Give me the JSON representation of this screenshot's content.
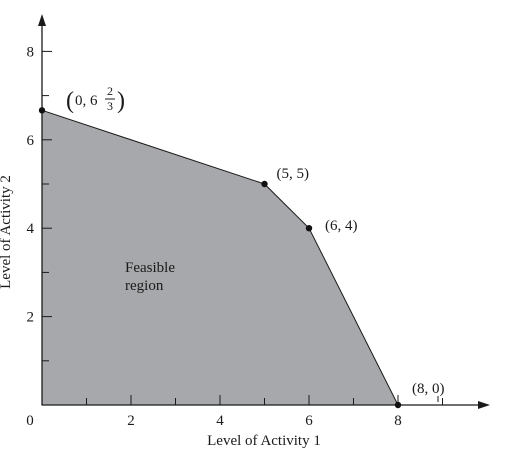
{
  "chart_data": {
    "type": "area",
    "xlabel": "Level of Activity 1",
    "ylabel": "Level of Activity 2",
    "xlim": [
      0,
      10.2
    ],
    "ylim": [
      0,
      8.8
    ],
    "x_ticks": [
      0,
      2,
      4,
      6,
      8
    ],
    "y_ticks": [
      2,
      4,
      6,
      8
    ],
    "x_minor_ticks": [
      1,
      3,
      5,
      7,
      9
    ],
    "y_minor_ticks": [
      1,
      3,
      5,
      7
    ],
    "grid": false,
    "region": {
      "label": "Feasible region",
      "vertices": [
        [
          0,
          0
        ],
        [
          0,
          6.6667
        ],
        [
          5,
          5
        ],
        [
          6,
          4
        ],
        [
          8,
          0
        ]
      ]
    },
    "points": [
      {
        "x": 0,
        "y": 6.6667,
        "label": "(0, 6 2/3)",
        "whole": "0, 6",
        "frac_num": "2",
        "frac_den": "3"
      },
      {
        "x": 5,
        "y": 5,
        "label": "(5, 5)"
      },
      {
        "x": 6,
        "y": 4,
        "label": "(6, 4)"
      },
      {
        "x": 8,
        "y": 0,
        "label": "(8, 0)"
      }
    ],
    "colors": {
      "region": "#a7a8ab",
      "axis": "#1a1a1a"
    }
  }
}
